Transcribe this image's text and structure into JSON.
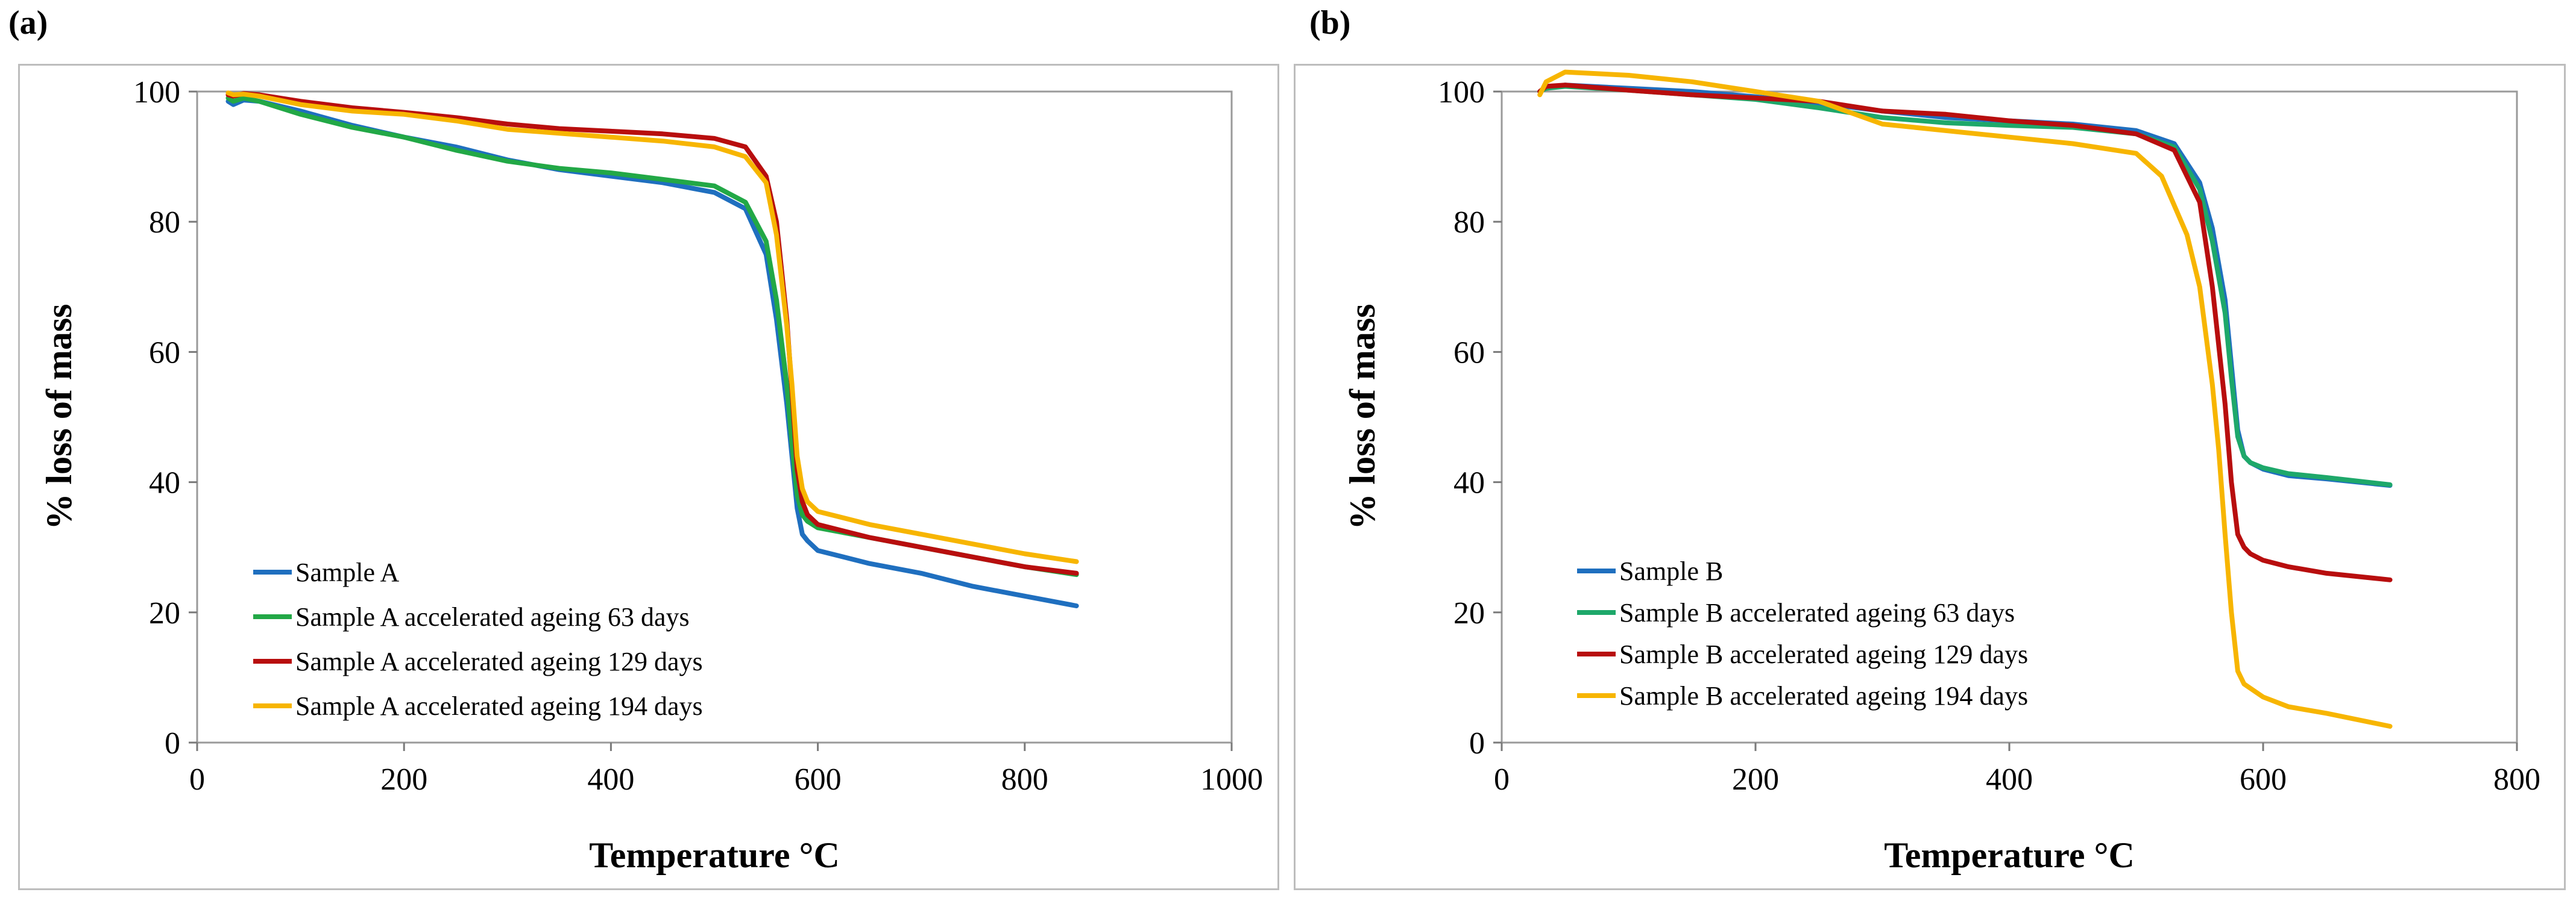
{
  "chart_data": [
    {
      "id": "a",
      "type": "line",
      "panel_label": "(a)",
      "title": "",
      "xlabel": "Temperature °C",
      "ylabel": "% loss of mass",
      "xlim": [
        0,
        1000
      ],
      "ylim": [
        0,
        100
      ],
      "xticks": [
        0,
        200,
        400,
        600,
        800,
        1000
      ],
      "yticks": [
        0,
        20,
        40,
        60,
        80,
        100
      ],
      "grid": false,
      "legend_position": "bottom-left",
      "series": [
        {
          "name": "Sample A",
          "color": "#1f6fbf",
          "x": [
            30,
            35,
            45,
            60,
            100,
            150,
            200,
            250,
            300,
            350,
            400,
            450,
            500,
            530,
            550,
            560,
            570,
            575,
            580,
            585,
            590,
            600,
            650,
            700,
            750,
            800,
            850
          ],
          "y": [
            98.5,
            98,
            98.7,
            98.5,
            97,
            94.8,
            93,
            91.5,
            89.5,
            88,
            87,
            86,
            84.5,
            82,
            75,
            65,
            52,
            44,
            36,
            32,
            31,
            29.5,
            27.5,
            26,
            24,
            22.5,
            21
          ]
        },
        {
          "name": "Sample A accelerated ageing 63 days",
          "color": "#22a846",
          "x": [
            30,
            35,
            45,
            60,
            100,
            150,
            200,
            250,
            300,
            350,
            400,
            450,
            500,
            530,
            550,
            560,
            570,
            575,
            580,
            585,
            590,
            600,
            650,
            700,
            750,
            800,
            850
          ],
          "y": [
            99,
            98.5,
            99,
            98.5,
            96.5,
            94.5,
            93,
            91,
            89.3,
            88.2,
            87.5,
            86.5,
            85.5,
            83,
            77,
            68,
            55,
            46,
            38,
            35,
            34,
            33,
            31.5,
            30,
            28.5,
            27,
            25.8
          ]
        },
        {
          "name": "Sample A accelerated ageing 129 days",
          "color": "#b80e0e",
          "x": [
            30,
            35,
            45,
            60,
            100,
            150,
            200,
            250,
            300,
            350,
            400,
            450,
            500,
            530,
            550,
            560,
            570,
            575,
            580,
            585,
            590,
            600,
            650,
            700,
            750,
            800,
            850
          ],
          "y": [
            99.5,
            99.3,
            99.7,
            99.5,
            98.5,
            97.5,
            96.8,
            96,
            95,
            94.3,
            93.9,
            93.5,
            92.8,
            91.5,
            87,
            80,
            65,
            54,
            42,
            37,
            35,
            33.5,
            31.5,
            30,
            28.5,
            27,
            26
          ]
        },
        {
          "name": "Sample A accelerated ageing 194 days",
          "color": "#f7b500",
          "x": [
            30,
            35,
            45,
            60,
            100,
            150,
            200,
            250,
            300,
            350,
            400,
            450,
            500,
            530,
            550,
            560,
            570,
            575,
            580,
            585,
            590,
            600,
            650,
            700,
            750,
            800,
            850
          ],
          "y": [
            99.8,
            99.5,
            99.6,
            99.3,
            98,
            97,
            96.5,
            95.5,
            94.2,
            93.6,
            93,
            92.4,
            91.5,
            90,
            86,
            78,
            64,
            55,
            44,
            39,
            37,
            35.5,
            33.5,
            32,
            30.5,
            29,
            27.8
          ]
        }
      ]
    },
    {
      "id": "b",
      "type": "line",
      "panel_label": "(b)",
      "title": "",
      "xlabel": "Temperature °C",
      "ylabel": "% loss of mass",
      "xlim": [
        0,
        800
      ],
      "ylim": [
        0,
        100
      ],
      "xticks": [
        0,
        200,
        400,
        600,
        800
      ],
      "yticks": [
        0,
        20,
        40,
        60,
        80,
        100
      ],
      "grid": false,
      "legend_position": "bottom-left",
      "series": [
        {
          "name": "Sample B",
          "color": "#1f6fbf",
          "x": [
            30,
            35,
            50,
            100,
            150,
            200,
            250,
            300,
            350,
            400,
            450,
            500,
            530,
            550,
            560,
            570,
            575,
            580,
            585,
            590,
            600,
            620,
            650,
            700
          ],
          "y": [
            100,
            100.5,
            101,
            100.5,
            100,
            99.2,
            98.2,
            97,
            96,
            95.5,
            95,
            94,
            92,
            86,
            79,
            68,
            58,
            48,
            44,
            43,
            42,
            41,
            40.5,
            39.5
          ]
        },
        {
          "name": "Sample B accelerated ageing 63 days",
          "color": "#1ea86a",
          "x": [
            30,
            35,
            50,
            100,
            150,
            200,
            250,
            300,
            350,
            400,
            450,
            500,
            530,
            550,
            560,
            570,
            575,
            580,
            585,
            590,
            600,
            620,
            650,
            700
          ],
          "y": [
            100,
            100.5,
            100.8,
            100.2,
            99.5,
            98.8,
            97.5,
            96,
            95.2,
            94.8,
            94.5,
            93.5,
            91.5,
            85,
            77,
            66,
            56,
            47,
            44,
            43,
            42.2,
            41.3,
            40.7,
            39.6
          ]
        },
        {
          "name": "Sample B accelerated ageing 129 days",
          "color": "#b80e0e",
          "x": [
            30,
            35,
            50,
            100,
            150,
            200,
            250,
            300,
            350,
            400,
            450,
            500,
            530,
            550,
            560,
            570,
            575,
            580,
            585,
            590,
            600,
            620,
            650,
            700
          ],
          "y": [
            100,
            100.8,
            101,
            100.2,
            99.5,
            99,
            98.5,
            97,
            96.5,
            95.5,
            94.8,
            93.5,
            91,
            83,
            70,
            52,
            40,
            32,
            30,
            29,
            28,
            27,
            26,
            25
          ]
        },
        {
          "name": "Sample B accelerated ageing 194 days",
          "color": "#f7b500",
          "x": [
            30,
            35,
            50,
            100,
            150,
            200,
            250,
            300,
            350,
            400,
            450,
            500,
            520,
            540,
            550,
            560,
            565,
            570,
            575,
            580,
            585,
            600,
            620,
            650,
            700
          ],
          "y": [
            99.5,
            101.5,
            103,
            102.5,
            101.5,
            100,
            98.5,
            95,
            94,
            93,
            92,
            90.5,
            87,
            78,
            70,
            55,
            45,
            32,
            20,
            11,
            9,
            7,
            5.5,
            4.5,
            2.5
          ]
        }
      ]
    }
  ]
}
